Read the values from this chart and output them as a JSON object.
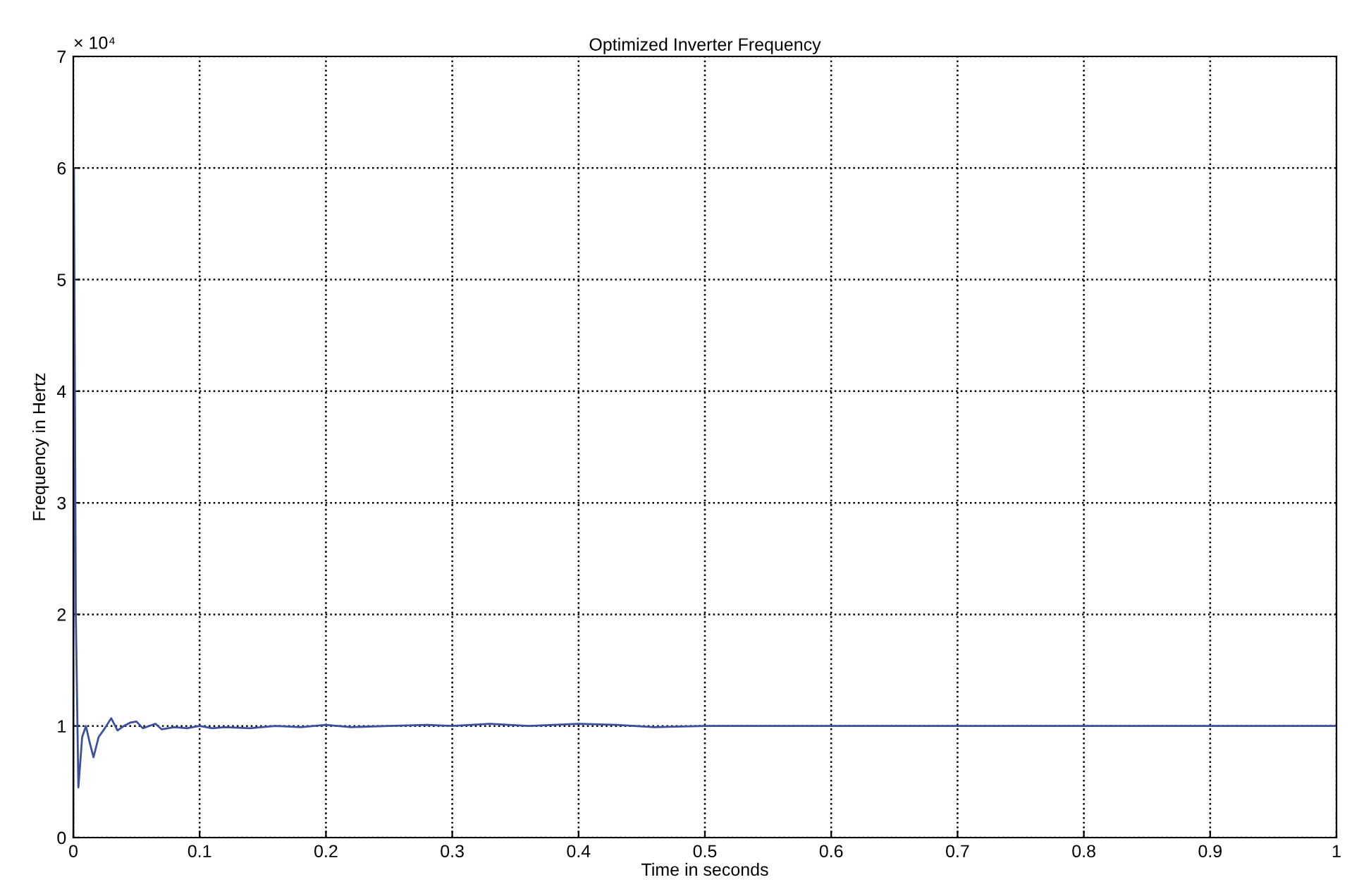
{
  "chart_data": {
    "type": "line",
    "title": "Optimized Inverter Frequency",
    "xlabel": "Time in seconds",
    "ylabel": "Frequency in Hertz",
    "annotations": [
      "× 10⁴"
    ],
    "xlim": [
      0,
      1
    ],
    "xticks": [
      0,
      0.1,
      0.2,
      0.3,
      0.4,
      0.5,
      0.6,
      0.7,
      0.8,
      0.9,
      {
        "value": 1,
        "label": "1"
      }
    ],
    "ylim": [
      0,
      7
    ],
    "yticks": [
      0,
      1,
      2,
      3,
      4,
      5,
      6,
      7
    ],
    "grid": true,
    "line_style": "solid",
    "marker": "none",
    "series": [
      {
        "color": "#3a4fa0",
        "x": [
          0,
          0.0005,
          0.002,
          0.004,
          0.007,
          0.01,
          0.013,
          0.016,
          0.02,
          0.025,
          0.03,
          0.035,
          0.04,
          0.045,
          0.05,
          0.055,
          0.06,
          0.065,
          0.07,
          0.08,
          0.09,
          0.1,
          0.11,
          0.12,
          0.14,
          0.16,
          0.18,
          0.2,
          0.22,
          0.25,
          0.28,
          0.3,
          0.33,
          0.36,
          0.4,
          0.43,
          0.46,
          0.5,
          0.55,
          0.6,
          0.7,
          0.8,
          0.9,
          1.0
        ],
        "values": [
          0,
          6.0,
          2.0,
          0.45,
          0.9,
          1.0,
          0.85,
          0.72,
          0.9,
          0.98,
          1.07,
          0.96,
          1.0,
          1.03,
          1.04,
          0.98,
          1.0,
          1.02,
          0.97,
          0.99,
          0.98,
          1.0,
          0.98,
          0.99,
          0.98,
          1.0,
          0.99,
          1.01,
          0.99,
          1.0,
          1.01,
          1.0,
          1.02,
          1.0,
          1.02,
          1.01,
          0.99,
          1.0,
          1.0,
          1.0,
          1.0,
          1.0,
          1.0,
          1.0
        ]
      }
    ]
  }
}
